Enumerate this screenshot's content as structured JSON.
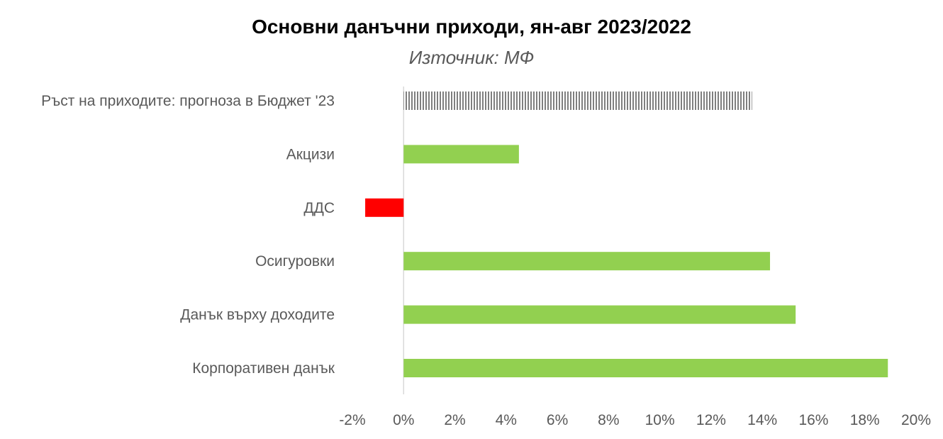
{
  "title": "Основни данъчни приходи, ян-авг 2023/2022",
  "subtitle": "Източник: МФ",
  "chart_data": {
    "type": "bar",
    "orientation": "horizontal",
    "categories": [
      "Ръст на приходите: прогноза в Бюджет '23",
      "Акцизи",
      "ДДС",
      "Осигуровки",
      "Данък върху доходите",
      "Корпоративен данък"
    ],
    "values": [
      13.6,
      4.5,
      -1.5,
      14.3,
      15.3,
      18.9
    ],
    "xlim": [
      -2,
      20
    ],
    "xticks": [
      -2,
      0,
      2,
      4,
      6,
      8,
      10,
      12,
      14,
      16,
      18,
      20
    ],
    "tick_suffix": "%",
    "grid": false,
    "legend": "none",
    "colors": {
      "positive": "#92D050",
      "negative": "#FF0000",
      "forecast_pattern": "#7F7F7F",
      "axis": "#D9D9D9"
    }
  }
}
